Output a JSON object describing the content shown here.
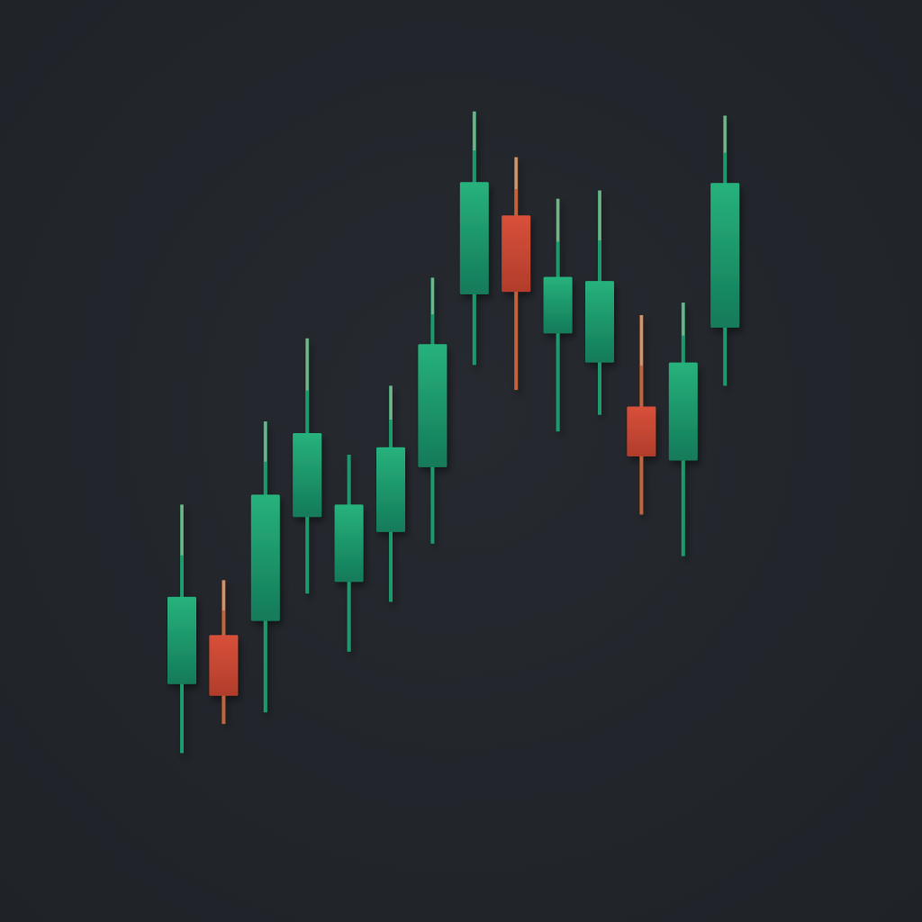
{
  "chart_data": {
    "type": "candlestick",
    "title": "",
    "xlabel": "",
    "ylabel": "",
    "axes_visible": false,
    "grid": false,
    "legend": "none",
    "ylim": [
      0,
      100
    ],
    "colors": {
      "background": "#262a30",
      "background_edge": "#1f2328",
      "up": "#27b27c",
      "up_dark": "#137a59",
      "down": "#d8503a",
      "down_dark": "#b13d2b",
      "up_wick": "#1a9a6c",
      "down_wick": "#c0643a",
      "highlight_wick": "#c9c2a0"
    },
    "candles": [
      {
        "open": 23.1,
        "close": 33.6,
        "high": 44.7,
        "low": 14.8
      },
      {
        "open": 29.0,
        "close": 21.7,
        "high": 35.6,
        "low": 18.3
      },
      {
        "open": 30.7,
        "close": 45.9,
        "high": 54.7,
        "low": 19.7
      },
      {
        "open": 43.2,
        "close": 53.3,
        "high": 64.7,
        "low": 34.0
      },
      {
        "open": 35.4,
        "close": 44.7,
        "high": 50.7,
        "low": 27.0
      },
      {
        "open": 41.4,
        "close": 51.6,
        "high": 59.0,
        "low": 33.0
      },
      {
        "open": 49.2,
        "close": 64.0,
        "high": 72.0,
        "low": 40.0
      },
      {
        "open": 70.0,
        "close": 83.5,
        "high": 92.0,
        "low": 61.5
      },
      {
        "open": 79.5,
        "close": 70.3,
        "high": 86.5,
        "low": 58.5
      },
      {
        "open": 65.3,
        "close": 72.1,
        "high": 81.5,
        "low": 53.5
      },
      {
        "open": 61.8,
        "close": 71.6,
        "high": 82.5,
        "low": 55.5
      },
      {
        "open": 56.5,
        "close": 50.5,
        "high": 67.5,
        "low": 43.5
      },
      {
        "open": 50.0,
        "close": 61.8,
        "high": 69.0,
        "low": 38.5
      },
      {
        "open": 66.0,
        "close": 83.4,
        "high": 91.5,
        "low": 59.0
      }
    ]
  }
}
